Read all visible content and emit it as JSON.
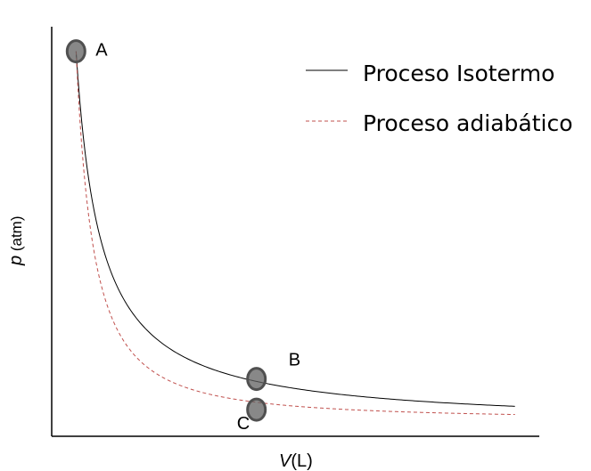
{
  "chart_data": {
    "type": "line",
    "title": "",
    "xlabel_var": "V",
    "xlabel_unit": "(L)",
    "ylabel_var": "p",
    "ylabel_unit": " (atm)",
    "grid": false,
    "legend_position": "top-right",
    "axis_ticks": false,
    "xlim": [
      0,
      10
    ],
    "ylim": [
      0,
      10
    ],
    "series": [
      {
        "name": "Proceso Isotermo",
        "style": "solid",
        "color": "#000000",
        "function": "isotherm",
        "x_start": 0.5,
        "x_end": 9.5,
        "y_start": 9.4
      },
      {
        "name": "Proceso adiabático",
        "style": "dashed",
        "color": "#c0504d",
        "function": "adiabatic",
        "gamma": 1.4,
        "x_start": 0.5,
        "x_end": 9.5,
        "y_start": 9.4
      }
    ],
    "points": [
      {
        "label": "A",
        "x": 0.5,
        "y": 9.4
      },
      {
        "label": "B",
        "x": 4.2,
        "y": 1.4
      },
      {
        "label": "C",
        "x": 4.2,
        "y": 0.65
      }
    ],
    "marker_color": "#606060"
  }
}
